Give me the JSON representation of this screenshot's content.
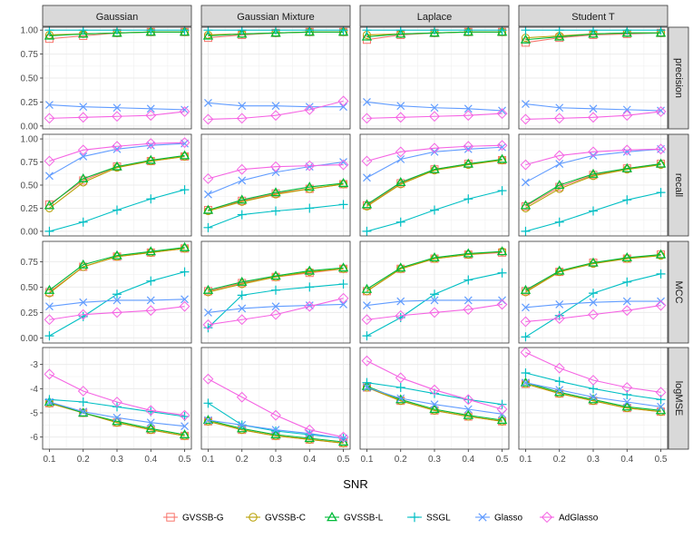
{
  "chart_data": {
    "type": "line",
    "xlabel": "SNR",
    "x": [
      0.1,
      0.2,
      0.3,
      0.4,
      0.5
    ],
    "x_tick_labels": [
      "0.1",
      "0.2",
      "0.3",
      "0.4",
      "0.5"
    ],
    "grid": true,
    "legend_position": "bottom",
    "columns": [
      "Gaussian",
      "Gaussian Mixture",
      "Laplace",
      "Student T"
    ],
    "rows": [
      {
        "name": "precision",
        "ylim": [
          -0.03,
          1.03
        ],
        "ticks": [
          0,
          0.25,
          0.5,
          0.75,
          1
        ],
        "tick_labels": [
          "0.00",
          "0.25",
          "0.50",
          "0.75",
          "1.00"
        ]
      },
      {
        "name": "recall",
        "ylim": [
          -0.05,
          1.05
        ],
        "ticks": [
          0,
          0.25,
          0.5,
          0.75,
          1
        ],
        "tick_labels": [
          "0.00",
          "0.25",
          "0.50",
          "0.75",
          "1.00"
        ]
      },
      {
        "name": "MCC",
        "ylim": [
          -0.05,
          0.95
        ],
        "ticks": [
          0,
          0.25,
          0.5,
          0.75
        ],
        "tick_labels": [
          "0.00",
          "0.25",
          "0.50",
          "0.75"
        ]
      },
      {
        "name": "logMSE",
        "ylim": [
          -6.5,
          -2.3
        ],
        "ticks": [
          -6,
          -5,
          -4,
          -3
        ],
        "tick_labels": [
          "-6",
          "-5",
          "-4",
          "-3"
        ]
      }
    ],
    "series": [
      {
        "name": "GVSSB-G",
        "color": "#F8766D",
        "shape": "square"
      },
      {
        "name": "GVSSB-C",
        "color": "#B79F00",
        "shape": "circle"
      },
      {
        "name": "GVSSB-L",
        "color": "#00BA38",
        "shape": "triangle"
      },
      {
        "name": "SSGL",
        "color": "#00BFC4",
        "shape": "plus"
      },
      {
        "name": "Glasso",
        "color": "#619CFF",
        "shape": "cross"
      },
      {
        "name": "AdGlasso",
        "color": "#F564E3",
        "shape": "diamond"
      }
    ],
    "values": {
      "precision": {
        "Gaussian": {
          "GVSSB-G": [
            0.91,
            0.94,
            0.97,
            0.98,
            0.98
          ],
          "GVSSB-C": [
            0.95,
            0.96,
            0.97,
            0.98,
            0.98
          ],
          "GVSSB-L": [
            0.94,
            0.96,
            0.97,
            0.98,
            0.98
          ],
          "SSGL": [
            1.0,
            1.0,
            1.0,
            1.0,
            1.0
          ],
          "Glasso": [
            0.22,
            0.2,
            0.19,
            0.18,
            0.17
          ],
          "AdGlasso": [
            0.08,
            0.09,
            0.1,
            0.11,
            0.15
          ]
        },
        "Gaussian Mixture": {
          "GVSSB-G": [
            0.92,
            0.95,
            0.97,
            0.98,
            0.98
          ],
          "GVSSB-C": [
            0.95,
            0.96,
            0.97,
            0.98,
            0.98
          ],
          "GVSSB-L": [
            0.94,
            0.96,
            0.97,
            0.98,
            0.98
          ],
          "SSGL": [
            1.0,
            1.0,
            1.0,
            1.0,
            1.0
          ],
          "Glasso": [
            0.24,
            0.21,
            0.21,
            0.2,
            0.2
          ],
          "AdGlasso": [
            0.07,
            0.08,
            0.11,
            0.17,
            0.26
          ]
        },
        "Laplace": {
          "GVSSB-G": [
            0.9,
            0.95,
            0.97,
            0.98,
            0.98
          ],
          "GVSSB-C": [
            0.95,
            0.96,
            0.97,
            0.98,
            0.98
          ],
          "GVSSB-L": [
            0.93,
            0.96,
            0.97,
            0.98,
            0.98
          ],
          "SSGL": [
            1.0,
            1.0,
            1.0,
            1.0,
            1.0
          ],
          "Glasso": [
            0.25,
            0.21,
            0.19,
            0.18,
            0.16
          ],
          "AdGlasso": [
            0.08,
            0.09,
            0.1,
            0.11,
            0.13
          ]
        },
        "Student T": {
          "GVSSB-G": [
            0.87,
            0.92,
            0.95,
            0.96,
            0.97
          ],
          "GVSSB-C": [
            0.92,
            0.94,
            0.96,
            0.97,
            0.97
          ],
          "GVSSB-L": [
            0.9,
            0.93,
            0.96,
            0.97,
            0.97
          ],
          "SSGL": [
            1.0,
            1.0,
            1.0,
            1.0,
            1.0
          ],
          "Glasso": [
            0.23,
            0.19,
            0.18,
            0.17,
            0.16
          ],
          "AdGlasso": [
            0.07,
            0.08,
            0.09,
            0.11,
            0.15
          ]
        }
      },
      "recall": {
        "Gaussian": {
          "GVSSB-G": [
            0.29,
            0.55,
            0.7,
            0.76,
            0.81
          ],
          "GVSSB-C": [
            0.25,
            0.53,
            0.69,
            0.76,
            0.81
          ],
          "GVSSB-L": [
            0.28,
            0.57,
            0.7,
            0.77,
            0.82
          ],
          "SSGL": [
            0.0,
            0.1,
            0.23,
            0.35,
            0.45
          ],
          "Glasso": [
            0.6,
            0.81,
            0.89,
            0.93,
            0.95
          ],
          "AdGlasso": [
            0.76,
            0.88,
            0.92,
            0.95,
            0.96
          ]
        },
        "Gaussian Mixture": {
          "GVSSB-G": [
            0.23,
            0.33,
            0.41,
            0.46,
            0.51
          ],
          "GVSSB-C": [
            0.22,
            0.32,
            0.4,
            0.46,
            0.51
          ],
          "GVSSB-L": [
            0.23,
            0.34,
            0.42,
            0.48,
            0.52
          ],
          "SSGL": [
            0.04,
            0.18,
            0.22,
            0.25,
            0.29
          ],
          "Glasso": [
            0.4,
            0.55,
            0.64,
            0.7,
            0.75
          ],
          "AdGlasso": [
            0.57,
            0.67,
            0.7,
            0.71,
            0.72
          ]
        },
        "Laplace": {
          "GVSSB-G": [
            0.28,
            0.52,
            0.67,
            0.73,
            0.77
          ],
          "GVSSB-C": [
            0.27,
            0.51,
            0.66,
            0.72,
            0.77
          ],
          "GVSSB-L": [
            0.29,
            0.53,
            0.67,
            0.73,
            0.78
          ],
          "SSGL": [
            0.0,
            0.1,
            0.23,
            0.35,
            0.44
          ],
          "Glasso": [
            0.58,
            0.78,
            0.86,
            0.89,
            0.91
          ],
          "AdGlasso": [
            0.76,
            0.86,
            0.9,
            0.92,
            0.93
          ]
        },
        "Student T": {
          "GVSSB-G": [
            0.27,
            0.48,
            0.61,
            0.68,
            0.73
          ],
          "GVSSB-C": [
            0.25,
            0.46,
            0.6,
            0.67,
            0.72
          ],
          "GVSSB-L": [
            0.28,
            0.5,
            0.62,
            0.68,
            0.73
          ],
          "SSGL": [
            0.0,
            0.1,
            0.22,
            0.34,
            0.42
          ],
          "Glasso": [
            0.53,
            0.73,
            0.82,
            0.86,
            0.89
          ],
          "AdGlasso": [
            0.72,
            0.82,
            0.86,
            0.88,
            0.89
          ]
        }
      },
      "MCC": {
        "Gaussian": {
          "GVSSB-G": [
            0.45,
            0.7,
            0.8,
            0.84,
            0.88
          ],
          "GVSSB-C": [
            0.44,
            0.7,
            0.8,
            0.84,
            0.88
          ],
          "GVSSB-L": [
            0.47,
            0.72,
            0.81,
            0.85,
            0.89
          ],
          "SSGL": [
            0.02,
            0.21,
            0.43,
            0.56,
            0.65
          ],
          "Glasso": [
            0.31,
            0.35,
            0.37,
            0.37,
            0.38
          ],
          "AdGlasso": [
            0.18,
            0.23,
            0.25,
            0.27,
            0.31
          ]
        },
        "Gaussian Mixture": {
          "GVSSB-G": [
            0.46,
            0.54,
            0.6,
            0.64,
            0.68
          ],
          "GVSSB-C": [
            0.45,
            0.53,
            0.6,
            0.65,
            0.68
          ],
          "GVSSB-L": [
            0.47,
            0.55,
            0.61,
            0.66,
            0.69
          ],
          "SSGL": [
            0.1,
            0.42,
            0.47,
            0.5,
            0.53
          ],
          "Glasso": [
            0.25,
            0.29,
            0.31,
            0.32,
            0.33
          ],
          "AdGlasso": [
            0.13,
            0.18,
            0.23,
            0.31,
            0.39
          ]
        },
        "Laplace": {
          "GVSSB-G": [
            0.46,
            0.68,
            0.78,
            0.82,
            0.84
          ],
          "GVSSB-C": [
            0.46,
            0.68,
            0.78,
            0.82,
            0.85
          ],
          "GVSSB-L": [
            0.48,
            0.69,
            0.79,
            0.83,
            0.85
          ],
          "SSGL": [
            0.02,
            0.2,
            0.43,
            0.57,
            0.64
          ],
          "Glasso": [
            0.32,
            0.36,
            0.37,
            0.37,
            0.37
          ],
          "AdGlasso": [
            0.18,
            0.22,
            0.25,
            0.28,
            0.33
          ]
        },
        "Student T": {
          "GVSSB-G": [
            0.46,
            0.65,
            0.74,
            0.78,
            0.82
          ],
          "GVSSB-C": [
            0.45,
            0.65,
            0.73,
            0.78,
            0.81
          ],
          "GVSSB-L": [
            0.47,
            0.66,
            0.74,
            0.79,
            0.82
          ],
          "SSGL": [
            0.01,
            0.22,
            0.44,
            0.55,
            0.63
          ],
          "Glasso": [
            0.3,
            0.33,
            0.35,
            0.36,
            0.36
          ],
          "AdGlasso": [
            0.16,
            0.19,
            0.23,
            0.27,
            0.32
          ]
        }
      },
      "logMSE": {
        "Gaussian": {
          "GVSSB-G": [
            -4.6,
            -5.0,
            -5.4,
            -5.7,
            -5.95
          ],
          "GVSSB-C": [
            -4.6,
            -5.0,
            -5.4,
            -5.7,
            -5.95
          ],
          "GVSSB-L": [
            -4.55,
            -5.0,
            -5.35,
            -5.65,
            -5.9
          ],
          "SSGL": [
            -4.45,
            -4.55,
            -4.75,
            -4.95,
            -5.15
          ],
          "Glasso": [
            -4.55,
            -4.95,
            -5.2,
            -5.4,
            -5.55
          ],
          "AdGlasso": [
            -3.4,
            -4.1,
            -4.55,
            -4.9,
            -5.1
          ]
        },
        "Gaussian Mixture": {
          "GVSSB-G": [
            -5.35,
            -5.7,
            -5.95,
            -6.1,
            -6.25
          ],
          "GVSSB-C": [
            -5.35,
            -5.7,
            -5.95,
            -6.1,
            -6.25
          ],
          "GVSSB-L": [
            -5.3,
            -5.65,
            -5.9,
            -6.05,
            -6.2
          ],
          "SSGL": [
            -4.6,
            -5.5,
            -5.75,
            -5.9,
            -6.05
          ],
          "Glasso": [
            -5.3,
            -5.5,
            -5.7,
            -5.85,
            -6.05
          ],
          "AdGlasso": [
            -3.6,
            -4.35,
            -5.1,
            -5.7,
            -6.0
          ]
        },
        "Laplace": {
          "GVSSB-G": [
            -3.95,
            -4.5,
            -4.9,
            -5.15,
            -5.35
          ],
          "GVSSB-C": [
            -3.95,
            -4.5,
            -4.9,
            -5.15,
            -5.35
          ],
          "GVSSB-L": [
            -3.9,
            -4.45,
            -4.85,
            -5.1,
            -5.3
          ],
          "SSGL": [
            -3.75,
            -3.95,
            -4.2,
            -4.45,
            -4.65
          ],
          "Glasso": [
            -3.95,
            -4.4,
            -4.65,
            -4.85,
            -5.05
          ],
          "AdGlasso": [
            -2.85,
            -3.55,
            -4.05,
            -4.45,
            -4.85
          ]
        },
        "Student T": {
          "GVSSB-G": [
            -3.8,
            -4.2,
            -4.5,
            -4.8,
            -4.95
          ],
          "GVSSB-C": [
            -3.8,
            -4.2,
            -4.5,
            -4.8,
            -4.95
          ],
          "GVSSB-L": [
            -3.75,
            -4.15,
            -4.45,
            -4.75,
            -4.9
          ],
          "SSGL": [
            -3.35,
            -3.7,
            -4.0,
            -4.25,
            -4.45
          ],
          "Glasso": [
            -3.75,
            -4.05,
            -4.35,
            -4.55,
            -4.75
          ],
          "AdGlasso": [
            -2.5,
            -3.15,
            -3.65,
            -3.95,
            -4.15
          ]
        }
      }
    }
  }
}
